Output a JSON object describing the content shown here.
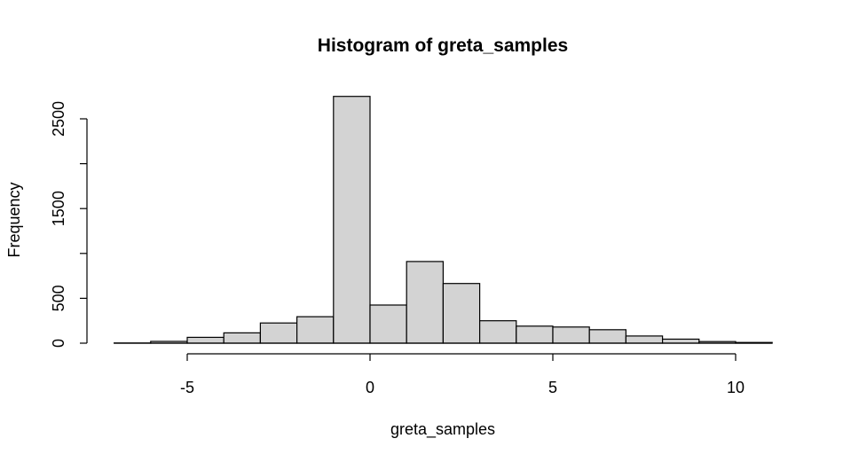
{
  "chart_data": {
    "type": "bar",
    "title": "Histogram of greta_samples",
    "xlabel": "greta_samples",
    "ylabel": "Frequency",
    "bins": [
      {
        "x0": -7,
        "x1": -6,
        "count": 2
      },
      {
        "x0": -6,
        "x1": -5,
        "count": 20
      },
      {
        "x0": -5,
        "x1": -4,
        "count": 65
      },
      {
        "x0": -4,
        "x1": -3,
        "count": 115
      },
      {
        "x0": -3,
        "x1": -2,
        "count": 225
      },
      {
        "x0": -2,
        "x1": -1,
        "count": 295
      },
      {
        "x0": -1,
        "x1": 0,
        "count": 2750
      },
      {
        "x0": 0,
        "x1": 1,
        "count": 425
      },
      {
        "x0": 1,
        "x1": 2,
        "count": 910
      },
      {
        "x0": 2,
        "x1": 3,
        "count": 665
      },
      {
        "x0": 3,
        "x1": 4,
        "count": 250
      },
      {
        "x0": 4,
        "x1": 5,
        "count": 190
      },
      {
        "x0": 5,
        "x1": 6,
        "count": 180
      },
      {
        "x0": 6,
        "x1": 7,
        "count": 150
      },
      {
        "x0": 7,
        "x1": 8,
        "count": 80
      },
      {
        "x0": 8,
        "x1": 9,
        "count": 45
      },
      {
        "x0": 9,
        "x1": 10,
        "count": 18
      },
      {
        "x0": 10,
        "x1": 11,
        "count": 8
      }
    ],
    "xticks": [
      -5,
      0,
      5,
      10
    ],
    "xtick_labels": [
      "-5",
      "0",
      "5",
      "10"
    ],
    "yticks": [
      0,
      500,
      1000,
      1500,
      2000,
      2500
    ],
    "ytick_labels": [
      "0",
      "500",
      "",
      "1500",
      "",
      "2500"
    ],
    "xlim": [
      -7,
      11
    ],
    "ylim": [
      0,
      2750
    ],
    "grid": false,
    "colors": {
      "bar_fill": "#d3d3d3",
      "bar_stroke": "#000000"
    }
  }
}
